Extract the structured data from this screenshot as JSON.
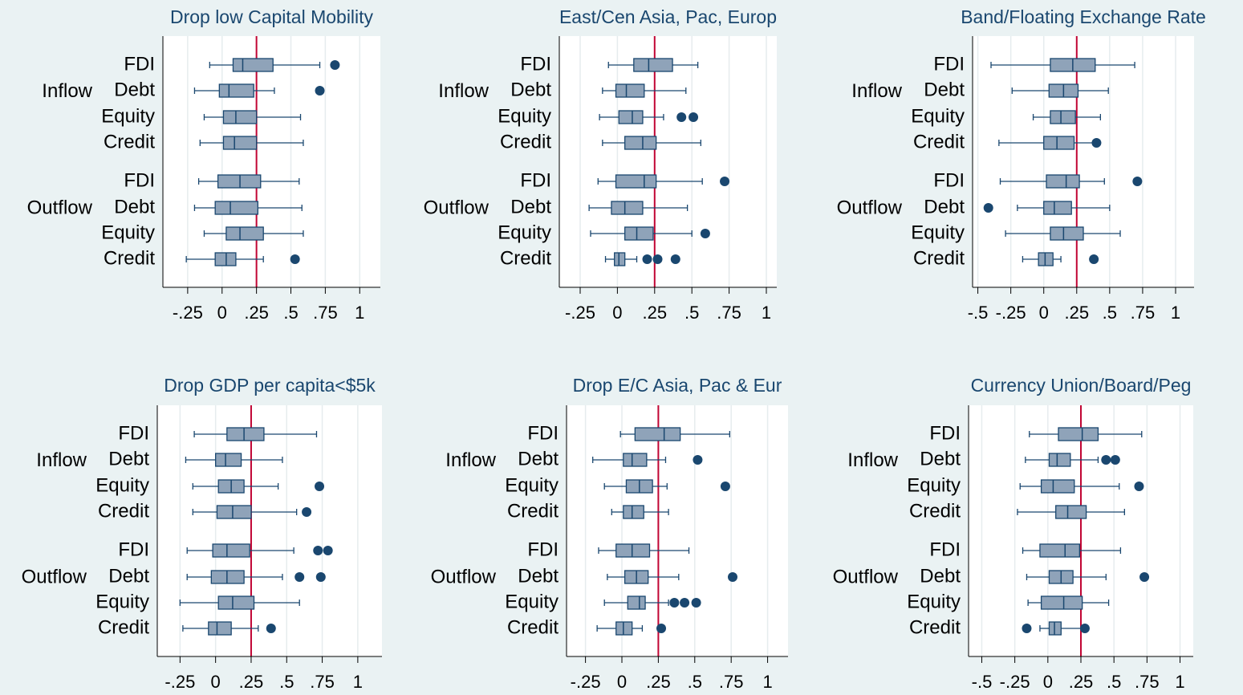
{
  "chart_data": [
    {
      "type": "box",
      "title": "Drop low Capital Mobility",
      "xlim": [
        -0.43,
        1.15
      ],
      "xticks": [
        {
          "value": -0.25,
          "label": "-.25"
        },
        0,
        {
          "value": 0.25,
          "label": ".25"
        },
        {
          "value": 0.5,
          "label": ".5"
        },
        {
          "value": 0.75,
          "label": ".75"
        },
        1
      ],
      "xline": 0.25,
      "grid": true,
      "box_color": "#8fa3b9",
      "line_color": "#1a476f",
      "xline_color": "#c10534",
      "groups": [
        {
          "name": "Inflow",
          "boxes": [
            {
              "label": "FDI",
              "low": -0.09,
              "q1": 0.08,
              "median": 0.15,
              "q3": 0.37,
              "high": 0.71,
              "outliers": [
                0.82
              ]
            },
            {
              "label": "Debt",
              "low": -0.2,
              "q1": -0.02,
              "median": 0.05,
              "q3": 0.23,
              "high": 0.38,
              "outliers": [
                0.71
              ]
            },
            {
              "label": "Equity",
              "low": -0.13,
              "q1": 0.01,
              "median": 0.1,
              "q3": 0.25,
              "high": 0.57,
              "outliers": []
            },
            {
              "label": "Credit",
              "low": -0.16,
              "q1": 0.01,
              "median": 0.09,
              "q3": 0.25,
              "high": 0.59,
              "outliers": []
            }
          ]
        },
        {
          "name": "Outflow",
          "boxes": [
            {
              "label": "FDI",
              "low": -0.17,
              "q1": -0.03,
              "median": 0.13,
              "q3": 0.28,
              "high": 0.56,
              "outliers": []
            },
            {
              "label": "Debt",
              "low": -0.2,
              "q1": -0.05,
              "median": 0.06,
              "q3": 0.26,
              "high": 0.58,
              "outliers": []
            },
            {
              "label": "Equity",
              "low": -0.13,
              "q1": 0.03,
              "median": 0.13,
              "q3": 0.3,
              "high": 0.59,
              "outliers": []
            },
            {
              "label": "Credit",
              "low": -0.26,
              "q1": -0.05,
              "median": 0.03,
              "q3": 0.1,
              "high": 0.3,
              "outliers": [
                0.53
              ]
            }
          ]
        }
      ]
    },
    {
      "type": "box",
      "title": "East/Cen Asia, Pac, Europ",
      "xlim": [
        -0.39,
        1.07
      ],
      "xticks": [
        {
          "value": -0.25,
          "label": "-.25"
        },
        0,
        {
          "value": 0.25,
          "label": ".25"
        },
        {
          "value": 0.5,
          "label": ".5"
        },
        {
          "value": 0.75,
          "label": ".75"
        },
        1
      ],
      "xline": 0.25,
      "grid": true,
      "box_color": "#8fa3b9",
      "line_color": "#1a476f",
      "xline_color": "#c10534",
      "groups": [
        {
          "name": "Inflow",
          "boxes": [
            {
              "label": "FDI",
              "low": -0.06,
              "q1": 0.11,
              "median": 0.21,
              "q3": 0.37,
              "high": 0.54,
              "outliers": []
            },
            {
              "label": "Debt",
              "low": -0.1,
              "q1": -0.01,
              "median": 0.06,
              "q3": 0.18,
              "high": 0.46,
              "outliers": []
            },
            {
              "label": "Equity",
              "low": -0.12,
              "q1": 0.01,
              "median": 0.1,
              "q3": 0.17,
              "high": 0.31,
              "outliers": [
                0.43,
                0.51
              ]
            },
            {
              "label": "Credit",
              "low": -0.1,
              "q1": 0.05,
              "median": 0.17,
              "q3": 0.26,
              "high": 0.56,
              "outliers": []
            }
          ]
        },
        {
          "name": "Outflow",
          "boxes": [
            {
              "label": "FDI",
              "low": -0.13,
              "q1": -0.01,
              "median": 0.18,
              "q3": 0.26,
              "high": 0.57,
              "outliers": [
                0.72
              ]
            },
            {
              "label": "Debt",
              "low": -0.19,
              "q1": -0.04,
              "median": 0.05,
              "q3": 0.17,
              "high": 0.47,
              "outliers": []
            },
            {
              "label": "Equity",
              "low": -0.18,
              "q1": 0.05,
              "median": 0.13,
              "q3": 0.24,
              "high": 0.5,
              "outliers": [
                0.59
              ]
            },
            {
              "label": "Credit",
              "low": -0.08,
              "q1": -0.02,
              "median": 0.01,
              "q3": 0.05,
              "high": 0.13,
              "outliers": [
                0.2,
                0.27,
                0.39
              ]
            }
          ]
        }
      ]
    },
    {
      "type": "box",
      "title": "Band/Floating Exchange Rate",
      "xlim": [
        -0.54,
        1.14
      ],
      "xticks": [
        {
          "value": -0.5,
          "label": "-.5"
        },
        {
          "value": -0.25,
          "label": "-.25"
        },
        0,
        {
          "value": 0.25,
          "label": ".25"
        },
        {
          "value": 0.5,
          "label": ".5"
        },
        {
          "value": 0.75,
          "label": ".75"
        },
        1
      ],
      "xline": 0.25,
      "grid": true,
      "box_color": "#8fa3b9",
      "line_color": "#1a476f",
      "xline_color": "#c10534",
      "groups": [
        {
          "name": "Inflow",
          "boxes": [
            {
              "label": "FDI",
              "low": -0.4,
              "q1": 0.05,
              "median": 0.22,
              "q3": 0.39,
              "high": 0.69,
              "outliers": []
            },
            {
              "label": "Debt",
              "low": -0.24,
              "q1": 0.04,
              "median": 0.15,
              "q3": 0.26,
              "high": 0.49,
              "outliers": []
            },
            {
              "label": "Equity",
              "low": -0.08,
              "q1": 0.05,
              "median": 0.13,
              "q3": 0.24,
              "high": 0.43,
              "outliers": []
            },
            {
              "label": "Credit",
              "low": -0.34,
              "q1": 0,
              "median": 0.1,
              "q3": 0.23,
              "high": 0.38,
              "outliers": [
                0.4
              ]
            }
          ]
        },
        {
          "name": "Outflow",
          "boxes": [
            {
              "label": "FDI",
              "low": -0.33,
              "q1": 0.02,
              "median": 0.17,
              "q3": 0.27,
              "high": 0.46,
              "outliers": [
                0.71
              ]
            },
            {
              "label": "Debt",
              "low": -0.2,
              "q1": 0,
              "median": 0.08,
              "q3": 0.21,
              "high": 0.5,
              "outliers": [
                -0.42
              ]
            },
            {
              "label": "Equity",
              "low": -0.29,
              "q1": 0.05,
              "median": 0.15,
              "q3": 0.3,
              "high": 0.58,
              "outliers": []
            },
            {
              "label": "Credit",
              "low": -0.16,
              "q1": -0.04,
              "median": 0.01,
              "q3": 0.07,
              "high": 0.13,
              "outliers": [
                0.38
              ]
            }
          ]
        }
      ]
    },
    {
      "type": "box",
      "title": "Drop GDP per capita<$5k",
      "xlim": [
        -0.41,
        1.17
      ],
      "xticks": [
        {
          "value": -0.25,
          "label": "-.25"
        },
        0,
        {
          "value": 0.25,
          "label": ".25"
        },
        {
          "value": 0.5,
          "label": ".5"
        },
        {
          "value": 0.75,
          "label": ".75"
        },
        1
      ],
      "xline": 0.25,
      "grid": true,
      "box_color": "#8fa3b9",
      "line_color": "#1a476f",
      "xline_color": "#c10534",
      "groups": [
        {
          "name": "Inflow",
          "boxes": [
            {
              "label": "FDI",
              "low": -0.15,
              "q1": 0.08,
              "median": 0.2,
              "q3": 0.34,
              "high": 0.71,
              "outliers": []
            },
            {
              "label": "Debt",
              "low": -0.21,
              "q1": 0,
              "median": 0.07,
              "q3": 0.18,
              "high": 0.47,
              "outliers": []
            },
            {
              "label": "Equity",
              "low": -0.16,
              "q1": 0.02,
              "median": 0.11,
              "q3": 0.2,
              "high": 0.44,
              "outliers": [
                0.73
              ]
            },
            {
              "label": "Credit",
              "low": -0.16,
              "q1": 0.01,
              "median": 0.12,
              "q3": 0.25,
              "high": 0.57,
              "outliers": [
                0.64
              ]
            }
          ]
        },
        {
          "name": "Outflow",
          "boxes": [
            {
              "label": "FDI",
              "low": -0.2,
              "q1": -0.02,
              "median": 0.08,
              "q3": 0.24,
              "high": 0.55,
              "outliers": [
                0.72,
                0.79
              ]
            },
            {
              "label": "Debt",
              "low": -0.2,
              "q1": -0.03,
              "median": 0.08,
              "q3": 0.2,
              "high": 0.47,
              "outliers": [
                0.59,
                0.74
              ]
            },
            {
              "label": "Equity",
              "low": -0.25,
              "q1": 0.02,
              "median": 0.12,
              "q3": 0.27,
              "high": 0.59,
              "outliers": []
            },
            {
              "label": "Credit",
              "low": -0.23,
              "q1": -0.05,
              "median": 0.01,
              "q3": 0.11,
              "high": 0.3,
              "outliers": [
                0.39
              ]
            }
          ]
        }
      ]
    },
    {
      "type": "box",
      "title": "Drop E/C Asia, Pac & Eur",
      "xlim": [
        -0.38,
        1.14
      ],
      "xticks": [
        {
          "value": -0.25,
          "label": "-.25"
        },
        0,
        {
          "value": 0.25,
          "label": ".25"
        },
        {
          "value": 0.5,
          "label": ".5"
        },
        {
          "value": 0.75,
          "label": ".75"
        },
        1
      ],
      "xline": 0.25,
      "grid": true,
      "box_color": "#8fa3b9",
      "line_color": "#1a476f",
      "xline_color": "#c10534",
      "groups": [
        {
          "name": "Inflow",
          "boxes": [
            {
              "label": "FDI",
              "low": -0.01,
              "q1": 0.09,
              "median": 0.29,
              "q3": 0.4,
              "high": 0.74,
              "outliers": []
            },
            {
              "label": "Debt",
              "low": -0.2,
              "q1": 0.01,
              "median": 0.07,
              "q3": 0.17,
              "high": 0.3,
              "outliers": [
                0.52
              ]
            },
            {
              "label": "Equity",
              "low": -0.12,
              "q1": 0.03,
              "median": 0.12,
              "q3": 0.21,
              "high": 0.31,
              "outliers": [
                0.71
              ]
            },
            {
              "label": "Credit",
              "low": -0.07,
              "q1": 0.01,
              "median": 0.07,
              "q3": 0.15,
              "high": 0.32,
              "outliers": []
            }
          ]
        },
        {
          "name": "Outflow",
          "boxes": [
            {
              "label": "FDI",
              "low": -0.16,
              "q1": -0.04,
              "median": 0.07,
              "q3": 0.19,
              "high": 0.46,
              "outliers": []
            },
            {
              "label": "Debt",
              "low": -0.1,
              "q1": 0.02,
              "median": 0.1,
              "q3": 0.18,
              "high": 0.39,
              "outliers": [
                0.76
              ]
            },
            {
              "label": "Equity",
              "low": -0.12,
              "q1": 0.04,
              "median": 0.12,
              "q3": 0.16,
              "high": 0.32,
              "outliers": [
                0.36,
                0.43,
                0.51
              ]
            },
            {
              "label": "Credit",
              "low": -0.17,
              "q1": -0.04,
              "median": 0.01,
              "q3": 0.07,
              "high": 0.14,
              "outliers": [
                0.27
              ]
            }
          ]
        }
      ]
    },
    {
      "type": "box",
      "title": "Currency Union/Board/Peg",
      "xlim": [
        -0.6,
        1.1
      ],
      "xticks": [
        {
          "value": -0.5,
          "label": "-.5"
        },
        {
          "value": -0.25,
          "label": "-.25"
        },
        0,
        {
          "value": 0.25,
          "label": ".25"
        },
        {
          "value": 0.5,
          "label": ".5"
        },
        {
          "value": 0.75,
          "label": ".75"
        },
        1
      ],
      "xline": 0.25,
      "grid": true,
      "box_color": "#8fa3b9",
      "line_color": "#1a476f",
      "xline_color": "#c10534",
      "groups": [
        {
          "name": "Inflow",
          "boxes": [
            {
              "label": "FDI",
              "low": -0.14,
              "q1": 0.08,
              "median": 0.26,
              "q3": 0.38,
              "high": 0.71,
              "outliers": []
            },
            {
              "label": "Debt",
              "low": -0.17,
              "q1": 0.01,
              "median": 0.07,
              "q3": 0.17,
              "high": 0.38,
              "outliers": [
                0.44,
                0.51
              ]
            },
            {
              "label": "Equity",
              "low": -0.21,
              "q1": -0.05,
              "median": 0.04,
              "q3": 0.2,
              "high": 0.54,
              "outliers": [
                0.69
              ]
            },
            {
              "label": "Credit",
              "low": -0.23,
              "q1": 0.06,
              "median": 0.15,
              "q3": 0.29,
              "high": 0.58,
              "outliers": []
            }
          ]
        },
        {
          "name": "Outflow",
          "boxes": [
            {
              "label": "FDI",
              "low": -0.19,
              "q1": -0.06,
              "median": 0.13,
              "q3": 0.24,
              "high": 0.55,
              "outliers": []
            },
            {
              "label": "Debt",
              "low": -0.16,
              "q1": 0.01,
              "median": 0.1,
              "q3": 0.19,
              "high": 0.44,
              "outliers": [
                0.73
              ]
            },
            {
              "label": "Equity",
              "low": -0.15,
              "q1": -0.05,
              "median": 0.12,
              "q3": 0.26,
              "high": 0.46,
              "outliers": []
            },
            {
              "label": "Credit",
              "low": -0.06,
              "q1": 0.01,
              "median": 0.05,
              "q3": 0.1,
              "high": 0.26,
              "outliers": [
                -0.16,
                0.28
              ]
            }
          ]
        }
      ]
    }
  ]
}
